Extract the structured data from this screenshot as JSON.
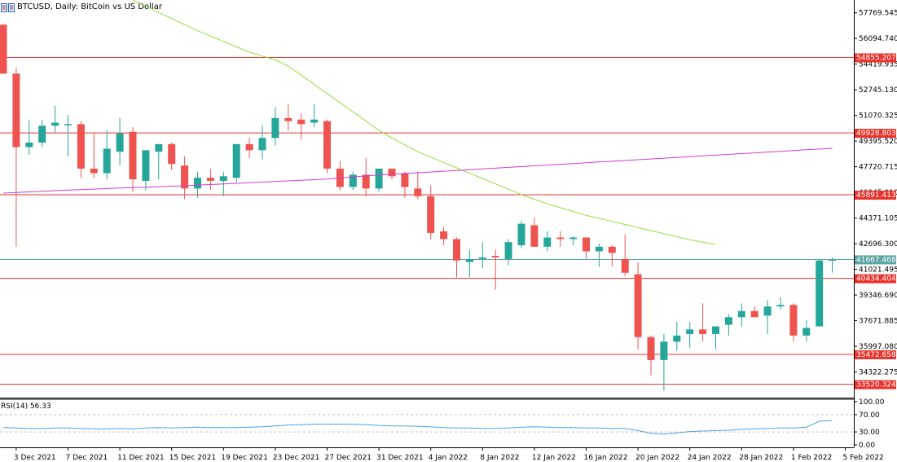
{
  "header": {
    "title": "BTCUSD, Daily:  BitCoin vs US Dollar"
  },
  "rsi": {
    "label": "RSI(14) 56.33"
  },
  "colors": {
    "bull": "#26a69a",
    "bear": "#ef5350",
    "level_line": "#e8332c",
    "ma_fast": "#8ee03c",
    "ma_slow": "#d23ccf",
    "current_line": "#5aa5a0",
    "rsi_line": "#4aa3e8",
    "axis": "#000000",
    "rsi_grid": "#c0c0c0"
  },
  "chart_data": {
    "type": "candlestick",
    "symbol": "BTCUSD",
    "timeframe": "Daily",
    "ylim": [
      32647.6,
      58607.3
    ],
    "price_ticks": [
      "57769.545",
      "56094.740",
      "54419.935",
      "52745.130",
      "51070.325",
      "49395.520",
      "47720.715",
      "46045.910",
      "44371.105",
      "42696.300",
      "41021.495",
      "39346.690",
      "37671.885",
      "35997.080",
      "34322.275"
    ],
    "x_tick_labels": [
      "3 Dec 2021",
      "7 Dec 2021",
      "11 Dec 2021",
      "15 Dec 2021",
      "19 Dec 2021",
      "23 Dec 2021",
      "27 Dec 2021",
      "31 Dec 2021",
      "4 Jan 2022",
      "8 Jan 2022",
      "12 Jan 2022",
      "16 Jan 2022",
      "20 Jan 2022",
      "24 Jan 2022",
      "28 Jan 2022",
      "1 Feb 2022",
      "5 Feb 2022"
    ],
    "x_tick_index_start": 1,
    "x_tick_every": 4,
    "candles": [
      {
        "o": 57000,
        "h": 57000,
        "l": 53800,
        "c": 53800
      },
      {
        "o": 53800,
        "h": 54200,
        "l": 42500,
        "c": 49000
      },
      {
        "o": 49000,
        "h": 50800,
        "l": 48500,
        "c": 49300
      },
      {
        "o": 49300,
        "h": 50800,
        "l": 49000,
        "c": 50400
      },
      {
        "o": 50400,
        "h": 51700,
        "l": 49900,
        "c": 50600
      },
      {
        "o": 50500,
        "h": 51100,
        "l": 48400,
        "c": 50500
      },
      {
        "o": 50500,
        "h": 50700,
        "l": 47000,
        "c": 47600
      },
      {
        "o": 47600,
        "h": 49900,
        "l": 47000,
        "c": 47300
      },
      {
        "o": 47300,
        "h": 50100,
        "l": 46900,
        "c": 48900
      },
      {
        "o": 48700,
        "h": 50900,
        "l": 47800,
        "c": 49900
      },
      {
        "o": 50000,
        "h": 50300,
        "l": 46100,
        "c": 46900
      },
      {
        "o": 46800,
        "h": 48600,
        "l": 46200,
        "c": 48800
      },
      {
        "o": 48700,
        "h": 49200,
        "l": 46900,
        "c": 49200
      },
      {
        "o": 49200,
        "h": 49300,
        "l": 47500,
        "c": 47900
      },
      {
        "o": 47800,
        "h": 48400,
        "l": 45600,
        "c": 46300
      },
      {
        "o": 46300,
        "h": 47400,
        "l": 45700,
        "c": 47000
      },
      {
        "o": 47000,
        "h": 47600,
        "l": 46200,
        "c": 46800
      },
      {
        "o": 46800,
        "h": 47400,
        "l": 45800,
        "c": 47100
      },
      {
        "o": 47000,
        "h": 49100,
        "l": 46700,
        "c": 49200
      },
      {
        "o": 49200,
        "h": 49600,
        "l": 48300,
        "c": 48800
      },
      {
        "o": 48800,
        "h": 50400,
        "l": 48200,
        "c": 49600
      },
      {
        "o": 49600,
        "h": 51600,
        "l": 49100,
        "c": 50900
      },
      {
        "o": 50900,
        "h": 51800,
        "l": 50100,
        "c": 50700
      },
      {
        "o": 50800,
        "h": 51200,
        "l": 49500,
        "c": 50500
      },
      {
        "o": 50600,
        "h": 51800,
        "l": 50300,
        "c": 50800
      },
      {
        "o": 50700,
        "h": 50800,
        "l": 47300,
        "c": 47600
      },
      {
        "o": 47600,
        "h": 48100,
        "l": 46200,
        "c": 46400
      },
      {
        "o": 46400,
        "h": 47400,
        "l": 46200,
        "c": 47200
      },
      {
        "o": 47200,
        "h": 48300,
        "l": 45800,
        "c": 46300
      },
      {
        "o": 46300,
        "h": 47600,
        "l": 46100,
        "c": 47600
      },
      {
        "o": 47600,
        "h": 47600,
        "l": 46900,
        "c": 47100
      },
      {
        "o": 47300,
        "h": 47400,
        "l": 45700,
        "c": 46400
      },
      {
        "o": 46300,
        "h": 47400,
        "l": 45600,
        "c": 45800
      },
      {
        "o": 45800,
        "h": 46500,
        "l": 43000,
        "c": 43400
      },
      {
        "o": 43500,
        "h": 43800,
        "l": 42600,
        "c": 43000
      },
      {
        "o": 43000,
        "h": 43100,
        "l": 40500,
        "c": 41600
      },
      {
        "o": 41500,
        "h": 42300,
        "l": 40500,
        "c": 41700
      },
      {
        "o": 41700,
        "h": 42800,
        "l": 41100,
        "c": 41800
      },
      {
        "o": 41900,
        "h": 42300,
        "l": 39700,
        "c": 41800
      },
      {
        "o": 41700,
        "h": 43000,
        "l": 41300,
        "c": 42800
      },
      {
        "o": 42600,
        "h": 44200,
        "l": 42400,
        "c": 44000
      },
      {
        "o": 43900,
        "h": 44400,
        "l": 42500,
        "c": 42500
      },
      {
        "o": 42500,
        "h": 43500,
        "l": 42200,
        "c": 43100
      },
      {
        "o": 43100,
        "h": 43500,
        "l": 42500,
        "c": 43000
      },
      {
        "o": 43000,
        "h": 43200,
        "l": 42600,
        "c": 43100
      },
      {
        "o": 43100,
        "h": 43100,
        "l": 41700,
        "c": 42200
      },
      {
        "o": 42200,
        "h": 42700,
        "l": 41200,
        "c": 42500
      },
      {
        "o": 42500,
        "h": 42600,
        "l": 41200,
        "c": 42100
      },
      {
        "o": 41700,
        "h": 43300,
        "l": 40600,
        "c": 40800
      },
      {
        "o": 40700,
        "h": 41500,
        "l": 35800,
        "c": 36600
      },
      {
        "o": 36600,
        "h": 36700,
        "l": 34100,
        "c": 35100
      },
      {
        "o": 35100,
        "h": 36800,
        "l": 33100,
        "c": 36300
      },
      {
        "o": 36300,
        "h": 37600,
        "l": 35700,
        "c": 36700
      },
      {
        "o": 36800,
        "h": 37600,
        "l": 35900,
        "c": 37100
      },
      {
        "o": 37100,
        "h": 38800,
        "l": 36300,
        "c": 36800
      },
      {
        "o": 36800,
        "h": 37300,
        "l": 35800,
        "c": 37300
      },
      {
        "o": 37400,
        "h": 38100,
        "l": 36700,
        "c": 37900
      },
      {
        "o": 37900,
        "h": 38800,
        "l": 37300,
        "c": 38300
      },
      {
        "o": 38300,
        "h": 38600,
        "l": 37900,
        "c": 37900
      },
      {
        "o": 38000,
        "h": 39000,
        "l": 36800,
        "c": 38600
      },
      {
        "o": 38600,
        "h": 39200,
        "l": 38400,
        "c": 38700
      },
      {
        "o": 38700,
        "h": 38800,
        "l": 36300,
        "c": 36700
      },
      {
        "o": 36700,
        "h": 37700,
        "l": 36300,
        "c": 37200
      },
      {
        "o": 37300,
        "h": 41700,
        "l": 37300,
        "c": 41600
      },
      {
        "o": 41600,
        "h": 41800,
        "l": 40800,
        "c": 41667.468
      }
    ],
    "horizontal_levels": [
      {
        "value": 54855.207,
        "label": "54855.207"
      },
      {
        "value": 49928.803,
        "label": "49928.803"
      },
      {
        "value": 45891.413,
        "label": "45891.413"
      },
      {
        "value": 40434.404,
        "label": "40434.404"
      },
      {
        "value": 35472.658,
        "label": "35472.658"
      },
      {
        "value": 33520.324,
        "label": "33520.324"
      }
    ],
    "current_price": {
      "value": 41667.468,
      "label": "41667.468"
    },
    "ma_fast": {
      "start_index": 10,
      "values": [
        58600,
        58200,
        57800,
        57400,
        57000,
        56600,
        56250,
        55900,
        55550,
        55200,
        54950,
        54700,
        54300,
        53700,
        53100,
        52500,
        51900,
        51300,
        50700,
        50100,
        49600,
        49150,
        48700,
        48350,
        48000,
        47650,
        47300,
        46950,
        46600,
        46250,
        45900,
        45600,
        45300,
        45050,
        44800,
        44550,
        44350,
        44150,
        43950,
        43750,
        43550,
        43350,
        43150,
        42950,
        42800,
        42650
      ]
    },
    "ma_slow": {
      "start_index": 0,
      "values": [
        46000,
        46040,
        46080,
        46120,
        46160,
        46200,
        46230,
        46260,
        46300,
        46330,
        46360,
        46390,
        46420,
        46450,
        46480,
        46520,
        46560,
        46600,
        46640,
        46680,
        46720,
        46760,
        46800,
        46840,
        46880,
        46920,
        47000,
        47060,
        47120,
        47180,
        47230,
        47280,
        47330,
        47380,
        47430,
        47480,
        47530,
        47580,
        47630,
        47680,
        47730,
        47780,
        47830,
        47880,
        47930,
        47980,
        48030,
        48080,
        48130,
        48180,
        48230,
        48280,
        48330,
        48380,
        48430,
        48480,
        48530,
        48580,
        48630,
        48680,
        48730,
        48780,
        48830,
        48880,
        48930
      ]
    },
    "rsi": {
      "period": 14,
      "last": 56.33,
      "ylim": [
        0,
        100
      ],
      "levels": [
        30,
        70
      ],
      "ticks": [
        "100.00",
        "70.00",
        "30.00",
        "0.00"
      ],
      "values": [
        40,
        39,
        38,
        38,
        39,
        39,
        38,
        37,
        37,
        38,
        37,
        39,
        40,
        39,
        40,
        41,
        40,
        40,
        40,
        41,
        42,
        44,
        46,
        47,
        48,
        48,
        48,
        48,
        47,
        45,
        44,
        44,
        43,
        42,
        40,
        39,
        39,
        38,
        38,
        39,
        41,
        42,
        41,
        40,
        40,
        39,
        39,
        38,
        38,
        33,
        27,
        25,
        28,
        31,
        32,
        33,
        34,
        36,
        37,
        38,
        39,
        39,
        41,
        55,
        56.33
      ]
    }
  }
}
